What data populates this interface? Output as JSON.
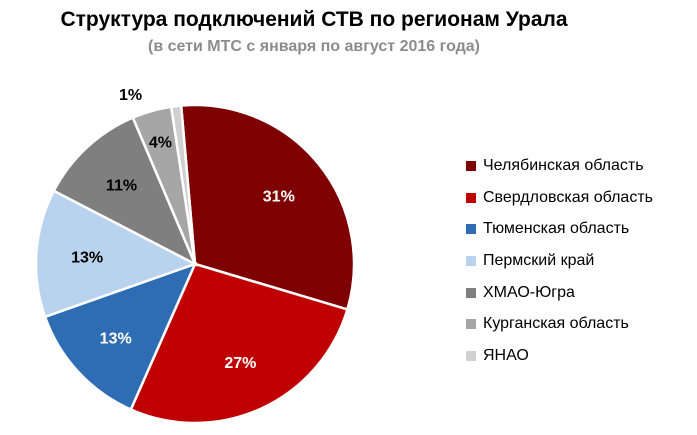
{
  "title": "Структура подключений СТВ по регионам Урала",
  "subtitle": "(в сети МТС с января по август 2016 года)",
  "chart_data": {
    "type": "pie",
    "title": "Структура подключений СТВ по регионам Урала",
    "subtitle": "(в сети МТС с января по август 2016 года)",
    "legend_position": "right",
    "slices": [
      {
        "name": "Челябинская область",
        "value": 31,
        "label": "31%",
        "color": "#7f0000"
      },
      {
        "name": "Свердловская область",
        "value": 27,
        "label": "27%",
        "color": "#c00000"
      },
      {
        "name": "Тюменская область",
        "value": 13,
        "label": "13%",
        "color": "#2e6db4"
      },
      {
        "name": "Пермский край",
        "value": 13,
        "label": "13%",
        "color": "#b9d3ee"
      },
      {
        "name": "ХМАО-Югра",
        "value": 11,
        "label": "11%",
        "color": "#7f7f7f"
      },
      {
        "name": "Курганская область",
        "value": 4,
        "label": "4%",
        "color": "#a6a6a6"
      },
      {
        "name": "ЯНАО",
        "value": 1,
        "label": "1%",
        "color": "#d0d0d0"
      }
    ]
  }
}
